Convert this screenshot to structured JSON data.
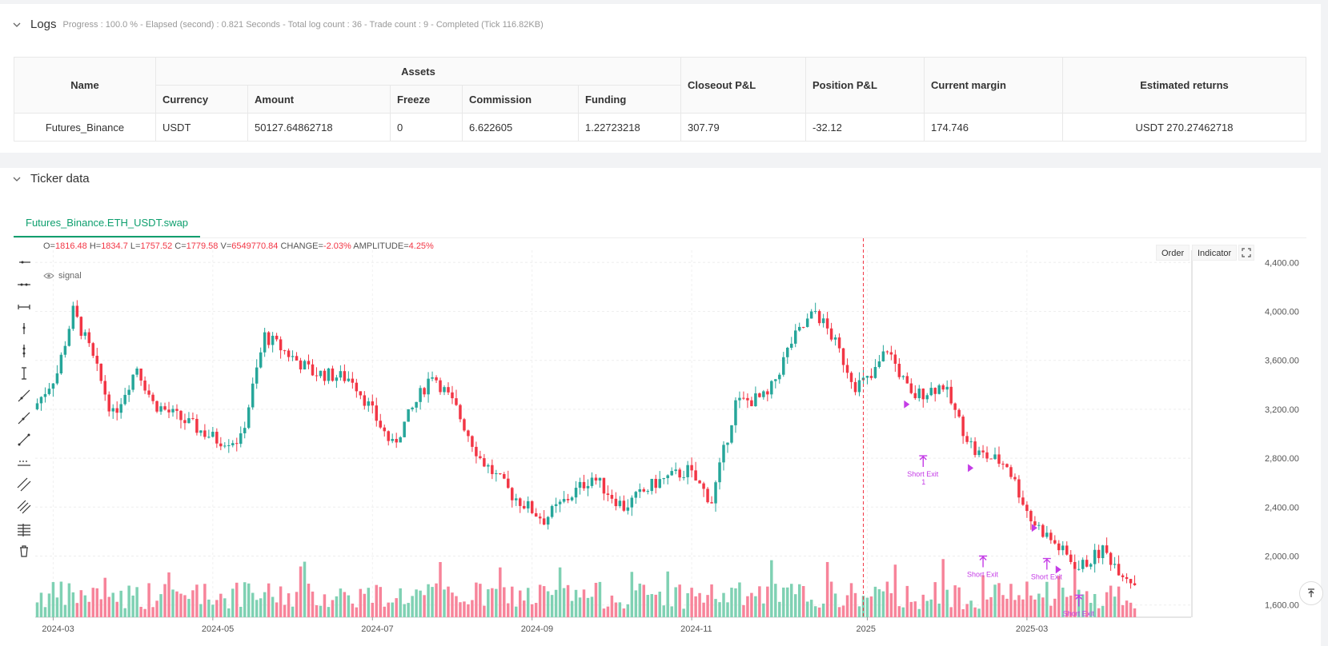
{
  "logs": {
    "title": "Logs",
    "meta": "Progress : 100.0 % - Elapsed (second) : 0.821  Seconds - Total log count : 36 - Trade count : 9 - Completed (Tick 116.82KB)"
  },
  "assets_table": {
    "headers": {
      "name": "Name",
      "assets": "Assets",
      "currency": "Currency",
      "amount": "Amount",
      "freeze": "Freeze",
      "commission": "Commission",
      "funding": "Funding",
      "closeout": "Closeout P&L",
      "position": "Position P&L",
      "margin": "Current margin",
      "returns": "Estimated returns"
    },
    "row": {
      "name": "Futures_Binance",
      "currency": "USDT",
      "amount": "50127.64862718",
      "freeze": "0",
      "commission": "6.622605",
      "funding": "1.22723218",
      "closeout": "307.79",
      "position": "-32.12",
      "margin": "174.746",
      "returns": "USDT 270.27462718"
    }
  },
  "ticker": {
    "title": "Ticker data",
    "tab": "Futures_Binance.ETH_USDT.swap",
    "ohlc": {
      "o_label": "O=",
      "o": "1816.48",
      "h_label": "H=",
      "h": "1834.7",
      "l_label": "L=",
      "l": "1757.52",
      "c_label": "C=",
      "c": "1779.58",
      "v_label": "V=",
      "v": "6549770.84",
      "change_label": "CHANGE=",
      "change": "-2.03%",
      "amp_label": "AMPLITUDE=",
      "amp": "4.25%"
    },
    "signal_label": "signal",
    "buttons": {
      "order": "Order",
      "indicator": "Indicator"
    }
  },
  "tools": [
    "horizontal-ray-icon",
    "horizontal-line-icon",
    "horizontal-segment-icon",
    "vertical-ray-icon",
    "vertical-line-icon",
    "vertical-segment-icon",
    "trend-line-icon",
    "ray-line-icon",
    "segment-line-icon",
    "price-line-icon",
    "parallel-channel-icon",
    "multi-line-icon",
    "fib-levels-icon",
    "delete-icon"
  ],
  "colors": {
    "up": "#26a69a",
    "down": "#f23645",
    "accent": "#0e9f6e",
    "signal": "#c43be6",
    "volume_up": "#7fd1b3",
    "volume_down": "#f7849a"
  },
  "chart_data": {
    "type": "candlestick",
    "ylim": [
      1500,
      4500
    ],
    "y_ticks": [
      "4,400.00",
      "4,000.00",
      "3,600.00",
      "3,200.00",
      "2,800.00",
      "2,400.00",
      "2,000.00",
      "1,600.00"
    ],
    "y_tick_values": [
      4400,
      4000,
      3600,
      3200,
      2800,
      2400,
      2000,
      1600
    ],
    "x_ticks": [
      "2024-03",
      "2024-05",
      "2024-07",
      "2024-09",
      "2024-11",
      "2025",
      "2025-03"
    ],
    "x_tick_index": [
      4,
      44,
      84,
      124,
      164,
      208,
      248
    ],
    "candle_count": 276,
    "anchors": [
      [
        0,
        3200
      ],
      [
        6,
        3500
      ],
      [
        10,
        4000
      ],
      [
        14,
        3700
      ],
      [
        20,
        3150
      ],
      [
        26,
        3550
      ],
      [
        30,
        3250
      ],
      [
        38,
        3100
      ],
      [
        46,
        2950
      ],
      [
        52,
        2950
      ],
      [
        58,
        3800
      ],
      [
        70,
        3500
      ],
      [
        80,
        3450
      ],
      [
        90,
        2900
      ],
      [
        100,
        3500
      ],
      [
        106,
        3200
      ],
      [
        112,
        2800
      ],
      [
        120,
        2500
      ],
      [
        128,
        2300
      ],
      [
        140,
        2650
      ],
      [
        148,
        2400
      ],
      [
        156,
        2600
      ],
      [
        164,
        2700
      ],
      [
        170,
        2450
      ],
      [
        176,
        3250
      ],
      [
        184,
        3300
      ],
      [
        190,
        3750
      ],
      [
        196,
        4000
      ],
      [
        200,
        3800
      ],
      [
        206,
        3400
      ],
      [
        210,
        3450
      ],
      [
        214,
        3700
      ],
      [
        220,
        3300
      ],
      [
        228,
        3400
      ],
      [
        232,
        3100
      ],
      [
        236,
        2850
      ],
      [
        244,
        2750
      ],
      [
        250,
        2300
      ],
      [
        256,
        2100
      ],
      [
        262,
        1900
      ],
      [
        268,
        2050
      ],
      [
        272,
        1900
      ],
      [
        276,
        1780
      ]
    ],
    "signals": [
      {
        "index": 222,
        "price": 2820,
        "label": "Short Exit",
        "sub": "1"
      },
      {
        "index": 237,
        "price": 2000,
        "label": "Short Exit",
        "sub": ""
      },
      {
        "index": 253,
        "price": 1980,
        "label": "Short Exit",
        "sub": ""
      },
      {
        "index": 261,
        "price": 1680,
        "label": "Short Exit",
        "sub": ""
      }
    ],
    "entry_markers": [
      {
        "index": 218,
        "price": 3240
      },
      {
        "index": 234,
        "price": 2720
      },
      {
        "index": 250,
        "price": 2230
      },
      {
        "index": 256,
        "price": 1890
      }
    ],
    "divider_index": 207
  }
}
